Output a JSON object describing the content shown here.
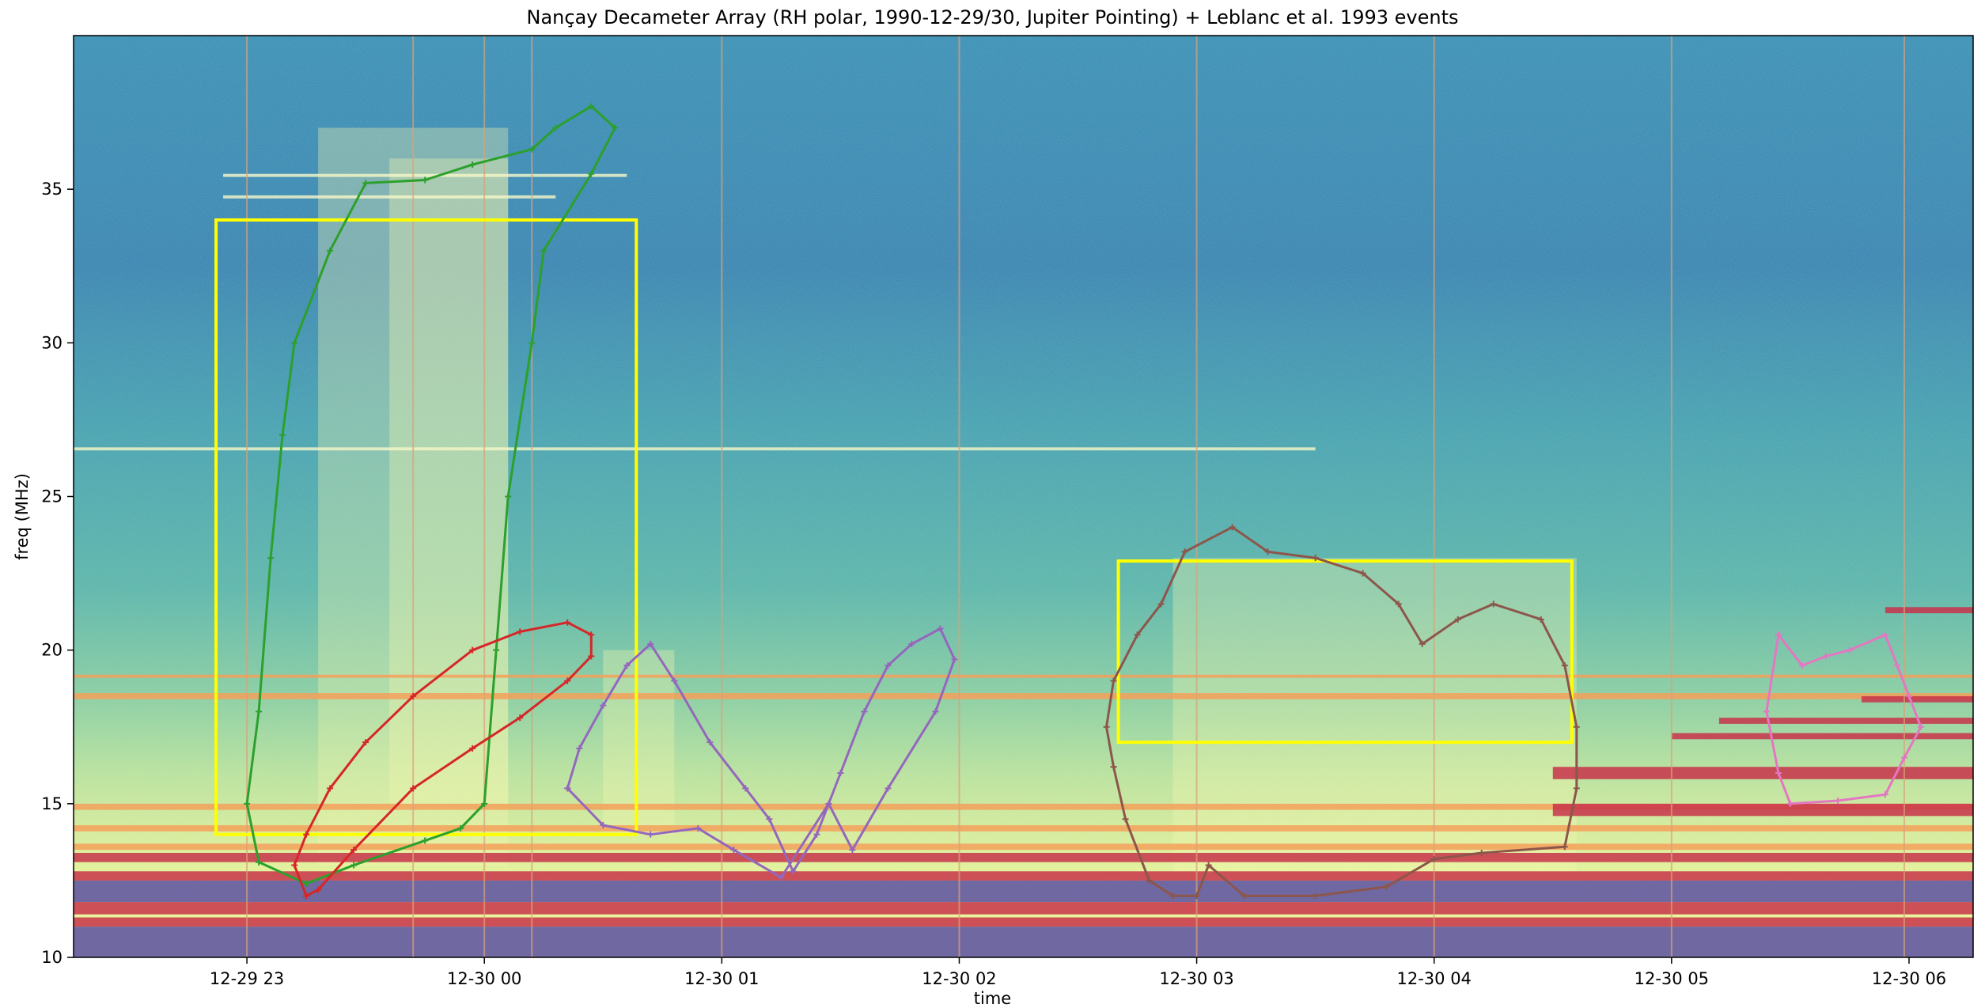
{
  "chart_data": {
    "type": "heatmap",
    "title": "Nançay Decameter Array (RH polar, 1990-12-29/30, Jupiter Pointing) + Leblanc et al. 1993 events",
    "xlabel": "time",
    "ylabel": "freq (MHz)",
    "x_ticks": [
      "12-29 23",
      "12-30 00",
      "12-30 01",
      "12-30 02",
      "12-30 03",
      "12-30 04",
      "12-30 05",
      "12-30 06"
    ],
    "x_tick_hours": [
      23,
      24,
      25,
      26,
      27,
      28,
      29,
      30
    ],
    "xlim_hours": [
      22.27,
      30.27
    ],
    "y_ticks": [
      10,
      15,
      20,
      25,
      30,
      35
    ],
    "ylim": [
      10,
      40
    ],
    "colormap": "Spectral_r",
    "grid": false,
    "instrument_lines_hours": [
      23.0,
      23.7,
      24.0,
      24.2,
      25.0,
      26.0,
      27.0,
      28.0,
      29.0,
      29.98
    ],
    "interference_bands": [
      {
        "x0": 22.27,
        "x1": 30.27,
        "f0": 10.0,
        "f1": 11.0,
        "kind": "low"
      },
      {
        "x0": 22.27,
        "x1": 30.27,
        "f0": 11.0,
        "f1": 11.3,
        "kind": "hot"
      },
      {
        "x0": 22.27,
        "x1": 30.27,
        "f0": 11.4,
        "f1": 11.8,
        "kind": "hot"
      },
      {
        "x0": 22.27,
        "x1": 30.27,
        "f0": 11.8,
        "f1": 12.5,
        "kind": "low"
      },
      {
        "x0": 22.27,
        "x1": 30.27,
        "f0": 12.5,
        "f1": 12.8,
        "kind": "hot"
      },
      {
        "x0": 22.27,
        "x1": 30.27,
        "f0": 13.1,
        "f1": 13.4,
        "kind": "hot"
      },
      {
        "x0": 22.27,
        "x1": 30.27,
        "f0": 13.5,
        "f1": 13.7,
        "kind": "warm"
      },
      {
        "x0": 22.27,
        "x1": 30.27,
        "f0": 14.1,
        "f1": 14.3,
        "kind": "warm"
      },
      {
        "x0": 22.27,
        "x1": 30.27,
        "f0": 14.8,
        "f1": 15.0,
        "kind": "warm"
      },
      {
        "x0": 22.27,
        "x1": 30.27,
        "f0": 18.4,
        "f1": 18.6,
        "kind": "warm"
      },
      {
        "x0": 22.27,
        "x1": 30.27,
        "f0": 19.1,
        "f1": 19.2,
        "kind": "warm"
      },
      {
        "x0": 28.5,
        "x1": 30.27,
        "f0": 14.6,
        "f1": 15.0,
        "kind": "hot"
      },
      {
        "x0": 28.5,
        "x1": 30.27,
        "f0": 15.8,
        "f1": 16.2,
        "kind": "hot"
      },
      {
        "x0": 29.0,
        "x1": 30.27,
        "f0": 17.1,
        "f1": 17.3,
        "kind": "hot"
      },
      {
        "x0": 29.2,
        "x1": 30.27,
        "f0": 17.6,
        "f1": 17.8,
        "kind": "hot"
      },
      {
        "x0": 29.8,
        "x1": 30.27,
        "f0": 18.3,
        "f1": 18.5,
        "kind": "hot"
      },
      {
        "x0": 29.9,
        "x1": 30.27,
        "f0": 21.2,
        "f1": 21.4,
        "kind": "hot"
      },
      {
        "x0": 22.9,
        "x1": 24.3,
        "f0": 34.7,
        "f1": 34.8,
        "kind": "line"
      },
      {
        "x0": 22.9,
        "x1": 24.6,
        "f0": 35.4,
        "f1": 35.5,
        "kind": "line"
      },
      {
        "x0": 22.27,
        "x1": 27.5,
        "f0": 26.5,
        "f1": 26.6,
        "kind": "line"
      }
    ],
    "emission_regions": [
      {
        "x0": 23.3,
        "x1": 24.1,
        "f0": 13.0,
        "f1": 37.0
      },
      {
        "x0": 23.6,
        "x1": 24.1,
        "f0": 15.0,
        "f1": 36.0
      },
      {
        "x0": 24.5,
        "x1": 24.8,
        "f0": 14.0,
        "f1": 20.0
      },
      {
        "x0": 26.9,
        "x1": 28.6,
        "f0": 12.0,
        "f1": 23.0
      }
    ],
    "rectangles": [
      {
        "color": "#ffff00",
        "x0_hours": 22.87,
        "x1_hours": 24.64,
        "f0": 14.0,
        "f1": 34.0
      },
      {
        "color": "#ffff00",
        "x0_hours": 26.67,
        "x1_hours": 28.58,
        "f0": 17.0,
        "f1": 22.9
      }
    ],
    "events": [
      {
        "color": "#2ca02c",
        "points": [
          [
            23.05,
            13.1
          ],
          [
            23.25,
            12.4
          ],
          [
            23.45,
            13.0
          ],
          [
            23.75,
            13.8
          ],
          [
            23.9,
            14.2
          ],
          [
            24.0,
            15.0
          ],
          [
            24.05,
            20.0
          ],
          [
            24.1,
            25.0
          ],
          [
            24.2,
            30.0
          ],
          [
            24.25,
            33.0
          ],
          [
            24.45,
            35.5
          ],
          [
            24.55,
            37.0
          ],
          [
            24.45,
            37.7
          ],
          [
            24.3,
            37.0
          ],
          [
            24.2,
            36.3
          ],
          [
            23.95,
            35.8
          ],
          [
            23.75,
            35.3
          ],
          [
            23.5,
            35.2
          ],
          [
            23.35,
            33.0
          ],
          [
            23.2,
            30.0
          ],
          [
            23.15,
            27.0
          ],
          [
            23.1,
            23.0
          ],
          [
            23.05,
            18.0
          ],
          [
            23.0,
            15.0
          ],
          [
            23.05,
            13.1
          ]
        ]
      },
      {
        "color": "#d62728",
        "points": [
          [
            23.25,
            12.0
          ],
          [
            23.3,
            12.2
          ],
          [
            23.45,
            13.5
          ],
          [
            23.7,
            15.5
          ],
          [
            23.95,
            16.8
          ],
          [
            24.15,
            17.8
          ],
          [
            24.35,
            19.0
          ],
          [
            24.45,
            19.8
          ],
          [
            24.45,
            20.5
          ],
          [
            24.35,
            20.9
          ],
          [
            24.15,
            20.6
          ],
          [
            23.95,
            20.0
          ],
          [
            23.7,
            18.5
          ],
          [
            23.5,
            17.0
          ],
          [
            23.35,
            15.5
          ],
          [
            23.25,
            14.0
          ],
          [
            23.2,
            13.0
          ],
          [
            23.25,
            12.0
          ]
        ]
      },
      {
        "color": "#9467bd",
        "points": [
          [
            24.35,
            15.5
          ],
          [
            24.4,
            16.8
          ],
          [
            24.5,
            18.2
          ],
          [
            24.6,
            19.5
          ],
          [
            24.7,
            20.2
          ],
          [
            24.8,
            19.0
          ],
          [
            24.95,
            17.0
          ],
          [
            25.1,
            15.5
          ],
          [
            25.2,
            14.5
          ],
          [
            25.3,
            12.8
          ],
          [
            25.4,
            14.0
          ],
          [
            25.5,
            16.0
          ],
          [
            25.6,
            18.0
          ],
          [
            25.7,
            19.5
          ],
          [
            25.8,
            20.2
          ],
          [
            25.92,
            20.7
          ],
          [
            25.98,
            19.7
          ],
          [
            25.9,
            18.0
          ],
          [
            25.7,
            15.5
          ],
          [
            25.55,
            13.5
          ],
          [
            25.45,
            15.0
          ],
          [
            25.25,
            12.6
          ],
          [
            25.05,
            13.5
          ],
          [
            24.9,
            14.2
          ],
          [
            24.7,
            14.0
          ],
          [
            24.5,
            14.3
          ],
          [
            24.35,
            15.5
          ]
        ]
      },
      {
        "color": "#8c564b",
        "points": [
          [
            26.65,
            16.2
          ],
          [
            26.7,
            14.5
          ],
          [
            26.8,
            12.5
          ],
          [
            26.9,
            12.0
          ],
          [
            27.0,
            12.0
          ],
          [
            27.05,
            13.0
          ],
          [
            27.2,
            12.0
          ],
          [
            27.5,
            12.0
          ],
          [
            27.8,
            12.3
          ],
          [
            28.0,
            13.2
          ],
          [
            28.2,
            13.4
          ],
          [
            28.55,
            13.6
          ],
          [
            28.6,
            15.5
          ],
          [
            28.6,
            17.5
          ],
          [
            28.55,
            19.5
          ],
          [
            28.45,
            21.0
          ],
          [
            28.25,
            21.5
          ],
          [
            28.1,
            21.0
          ],
          [
            27.95,
            20.2
          ],
          [
            27.85,
            21.5
          ],
          [
            27.7,
            22.5
          ],
          [
            27.5,
            23.0
          ],
          [
            27.3,
            23.2
          ],
          [
            27.15,
            24.0
          ],
          [
            26.95,
            23.2
          ],
          [
            26.85,
            21.5
          ],
          [
            26.75,
            20.5
          ],
          [
            26.65,
            19.0
          ],
          [
            26.62,
            17.5
          ],
          [
            26.65,
            16.2
          ]
        ]
      },
      {
        "color": "#e377c2",
        "points": [
          [
            29.45,
            20.5
          ],
          [
            29.55,
            19.5
          ],
          [
            29.65,
            19.8
          ],
          [
            29.75,
            20.0
          ],
          [
            29.9,
            20.5
          ],
          [
            29.95,
            19.5
          ],
          [
            30.0,
            18.5
          ],
          [
            30.05,
            17.5
          ],
          [
            29.98,
            16.5
          ],
          [
            29.9,
            15.3
          ],
          [
            29.7,
            15.1
          ],
          [
            29.5,
            15.0
          ],
          [
            29.45,
            16.0
          ],
          [
            29.4,
            18.0
          ],
          [
            29.45,
            20.5
          ]
        ]
      }
    ]
  }
}
